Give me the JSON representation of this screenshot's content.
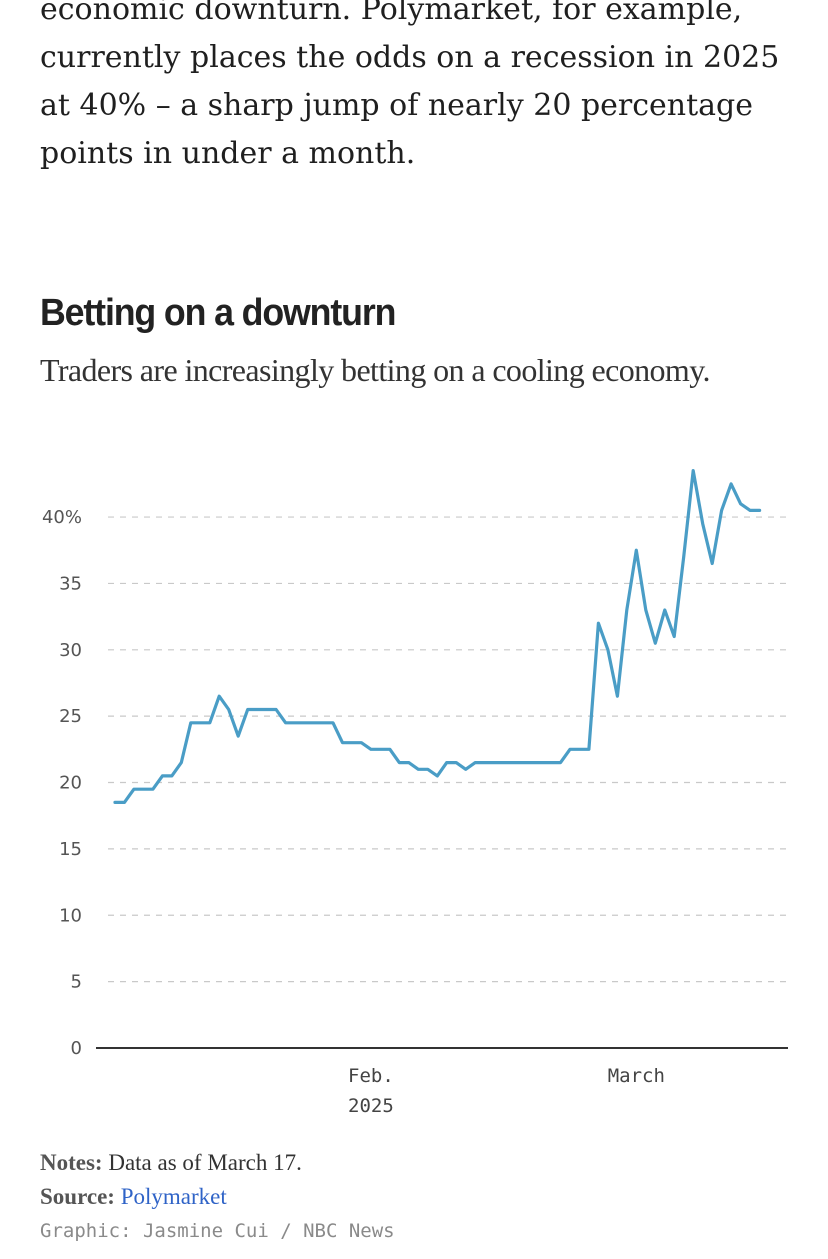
{
  "article": {
    "paragraph": "economic downturn. Polymarket, for example, currently places the odds on a recession in 2025 at 40% – a sharp jump of nearly 20 percentage points in under a month."
  },
  "chart_data": {
    "type": "line",
    "title": "Betting on a downturn",
    "subtitle": "Traders are increasingly betting on a cooling economy.",
    "xlabel": "",
    "ylabel": "",
    "ylim": [
      0,
      45
    ],
    "xlim": [
      "2025-01-03",
      "2025-03-17"
    ],
    "grid": true,
    "yticks": [
      {
        "value": 0,
        "label": "0"
      },
      {
        "value": 5,
        "label": "5"
      },
      {
        "value": 10,
        "label": "10"
      },
      {
        "value": 15,
        "label": "15"
      },
      {
        "value": 20,
        "label": "20"
      },
      {
        "value": 25,
        "label": "25"
      },
      {
        "value": 30,
        "label": "30"
      },
      {
        "value": 35,
        "label": "35"
      },
      {
        "value": 40,
        "label": "40%"
      }
    ],
    "xticks": [
      {
        "date": "2025-02-01",
        "label": "Feb.",
        "sublabel": "2025"
      },
      {
        "date": "2025-03-01",
        "label": "March",
        "sublabel": ""
      }
    ],
    "series": [
      {
        "name": "",
        "color": "#4a9dc6",
        "points": [
          [
            "2025-01-05",
            18.5
          ],
          [
            "2025-01-06",
            18.5
          ],
          [
            "2025-01-07",
            19.5
          ],
          [
            "2025-01-08",
            19.5
          ],
          [
            "2025-01-09",
            19.5
          ],
          [
            "2025-01-10",
            20.5
          ],
          [
            "2025-01-11",
            20.5
          ],
          [
            "2025-01-12",
            21.5
          ],
          [
            "2025-01-13",
            24.5
          ],
          [
            "2025-01-14",
            24.5
          ],
          [
            "2025-01-15",
            24.5
          ],
          [
            "2025-01-16",
            26.5
          ],
          [
            "2025-01-17",
            25.5
          ],
          [
            "2025-01-18",
            23.5
          ],
          [
            "2025-01-19",
            25.5
          ],
          [
            "2025-01-20",
            25.5
          ],
          [
            "2025-01-21",
            25.5
          ],
          [
            "2025-01-22",
            25.5
          ],
          [
            "2025-01-23",
            24.5
          ],
          [
            "2025-01-24",
            24.5
          ],
          [
            "2025-01-25",
            24.5
          ],
          [
            "2025-01-26",
            24.5
          ],
          [
            "2025-01-27",
            24.5
          ],
          [
            "2025-01-28",
            24.5
          ],
          [
            "2025-01-29",
            23.0
          ],
          [
            "2025-01-30",
            23.0
          ],
          [
            "2025-01-31",
            23.0
          ],
          [
            "2025-02-01",
            22.5
          ],
          [
            "2025-02-02",
            22.5
          ],
          [
            "2025-02-03",
            22.5
          ],
          [
            "2025-02-04",
            21.5
          ],
          [
            "2025-02-05",
            21.5
          ],
          [
            "2025-02-06",
            21.0
          ],
          [
            "2025-02-07",
            21.0
          ],
          [
            "2025-02-08",
            20.5
          ],
          [
            "2025-02-09",
            21.5
          ],
          [
            "2025-02-10",
            21.5
          ],
          [
            "2025-02-11",
            21.0
          ],
          [
            "2025-02-12",
            21.5
          ],
          [
            "2025-02-13",
            21.5
          ],
          [
            "2025-02-14",
            21.5
          ],
          [
            "2025-02-15",
            21.5
          ],
          [
            "2025-02-16",
            21.5
          ],
          [
            "2025-02-17",
            21.5
          ],
          [
            "2025-02-18",
            21.5
          ],
          [
            "2025-02-19",
            21.5
          ],
          [
            "2025-02-20",
            21.5
          ],
          [
            "2025-02-21",
            21.5
          ],
          [
            "2025-02-22",
            22.5
          ],
          [
            "2025-02-23",
            22.5
          ],
          [
            "2025-02-24",
            22.5
          ],
          [
            "2025-02-25",
            32.0
          ],
          [
            "2025-02-26",
            30.0
          ],
          [
            "2025-02-27",
            26.5
          ],
          [
            "2025-02-28",
            33.0
          ],
          [
            "2025-03-01",
            37.5
          ],
          [
            "2025-03-02",
            33.0
          ],
          [
            "2025-03-03",
            30.5
          ],
          [
            "2025-03-04",
            33.0
          ],
          [
            "2025-03-05",
            31.0
          ],
          [
            "2025-03-06",
            37.0
          ],
          [
            "2025-03-07",
            43.5
          ],
          [
            "2025-03-08",
            39.5
          ],
          [
            "2025-03-09",
            36.5
          ],
          [
            "2025-03-10",
            40.5
          ],
          [
            "2025-03-11",
            42.5
          ],
          [
            "2025-03-12",
            41.0
          ],
          [
            "2025-03-13",
            40.5
          ],
          [
            "2025-03-14",
            40.5
          ]
        ]
      }
    ]
  },
  "footer": {
    "notes_label": "Notes:",
    "notes_text": " Data as of March 17.",
    "source_label": "Source:",
    "source_link": "Polymarket",
    "credit": "Graphic: Jasmine Cui / NBC News"
  }
}
